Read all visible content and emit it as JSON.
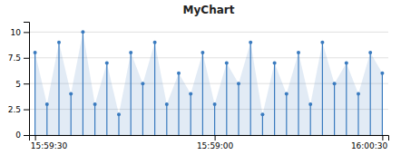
{
  "chart_data": {
    "type": "stem",
    "title": "MyChart",
    "categories": [
      "15:59:30",
      null,
      null,
      null,
      null,
      null,
      null,
      null,
      null,
      null,
      null,
      null,
      null,
      null,
      null,
      "15:59:00",
      null,
      null,
      null,
      null,
      null,
      null,
      null,
      null,
      null,
      null,
      null,
      null,
      null,
      "16:00:30"
    ],
    "values": [
      8,
      3,
      9,
      4,
      10,
      3,
      7,
      2,
      8,
      5,
      9,
      3,
      6,
      4,
      8,
      3,
      7,
      5,
      9,
      2,
      7,
      4,
      8,
      3,
      9,
      5,
      7,
      4,
      8,
      6
    ],
    "color": "#3a7bbf",
    "marker": "circle",
    "ylim": [
      0,
      11
    ],
    "yticks": [
      0,
      2.5,
      5,
      7.5,
      10
    ],
    "grid": true
  }
}
